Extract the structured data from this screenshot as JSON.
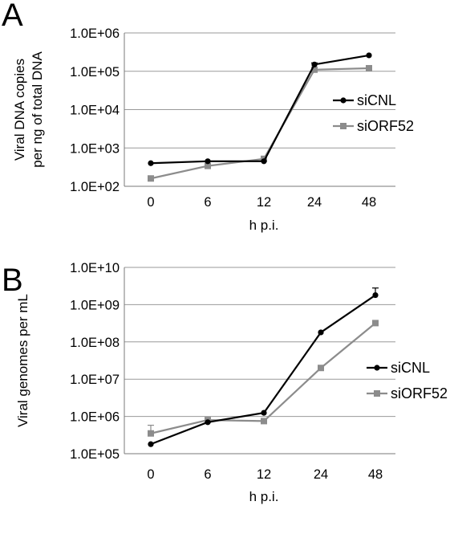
{
  "chart_data": [
    {
      "panel": "A",
      "type": "line",
      "yscale": "log",
      "ylim": [
        100,
        1000000
      ],
      "grid": true,
      "legend": "right",
      "categories": [
        "0",
        "6",
        "12",
        "24",
        "48"
      ],
      "xlabel": "h p.i.",
      "ylabel_lines": [
        "Viral DNA copies",
        "per ng of total DNA"
      ],
      "ytick_labels": [
        "1.0E+02",
        "1.0E+03",
        "1.0E+04",
        "1.0E+05",
        "1.0E+06"
      ],
      "ytick_values": [
        100,
        1000,
        10000,
        100000,
        1000000
      ],
      "series": [
        {
          "name": "siCNL",
          "color": "#000000",
          "marker": "circle",
          "values": [
            400,
            450,
            450,
            150000,
            260000
          ],
          "error_upper": [
            null,
            null,
            null,
            165000,
            null
          ]
        },
        {
          "name": "siORF52",
          "color": "#8c8c8c",
          "marker": "square",
          "values": [
            160,
            340,
            520,
            110000,
            120000
          ],
          "error_upper": [
            null,
            null,
            null,
            null,
            140000
          ]
        }
      ]
    },
    {
      "panel": "B",
      "type": "line",
      "yscale": "log",
      "ylim": [
        100000,
        10000000000
      ],
      "grid": true,
      "legend": "right",
      "categories": [
        "0",
        "6",
        "12",
        "24",
        "48"
      ],
      "xlabel": "h p.i.",
      "ylabel_lines": [
        "Viral genomes per mL"
      ],
      "ytick_labels": [
        "1.0E+05",
        "1.0E+06",
        "1.0E+07",
        "1.0E+08",
        "1.0E+09",
        "1.0E+10"
      ],
      "ytick_values": [
        100000,
        1000000,
        10000000,
        100000000,
        1000000000,
        10000000000
      ],
      "series": [
        {
          "name": "siCNL",
          "color": "#000000",
          "marker": "circle",
          "values": [
            180000,
            700000,
            1250000,
            180000000,
            1800000000
          ],
          "error_upper": [
            null,
            null,
            null,
            null,
            2800000000
          ]
        },
        {
          "name": "siORF52",
          "color": "#8c8c8c",
          "marker": "square",
          "values": [
            350000,
            800000,
            750000,
            20000000,
            320000000
          ],
          "error_upper": [
            580000,
            null,
            null,
            null,
            null
          ]
        }
      ]
    }
  ]
}
